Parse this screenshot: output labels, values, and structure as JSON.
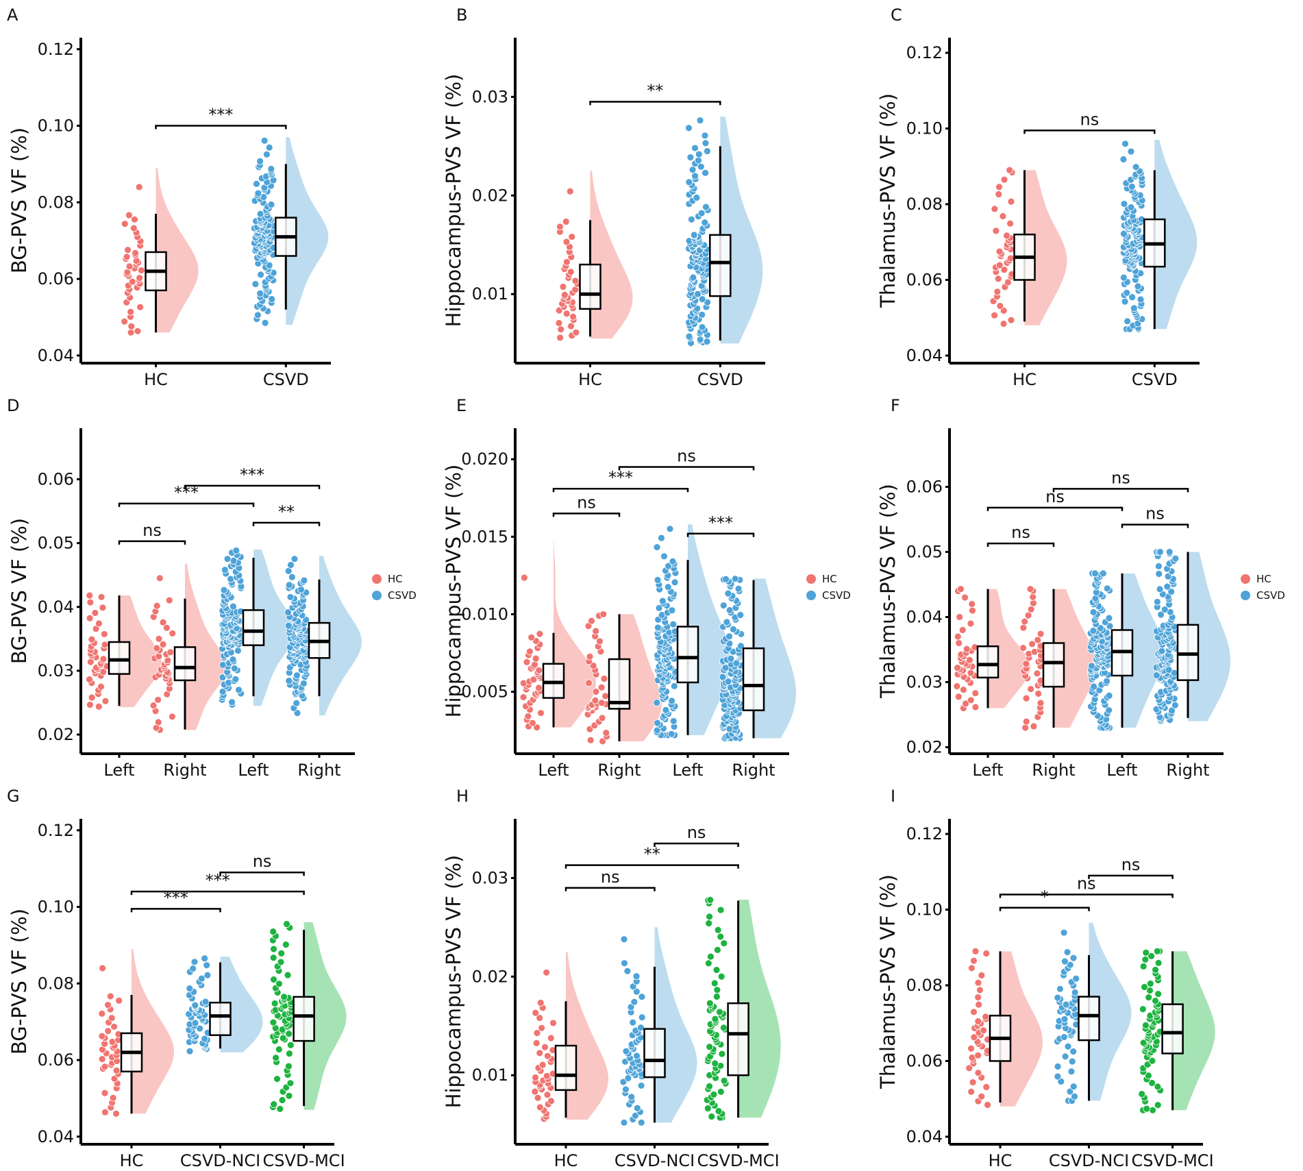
{
  "colors": {
    "HC": {
      "point": "#F07470",
      "fill": "#F9C6C3"
    },
    "CSVD": {
      "point": "#4EA3D8",
      "fill": "#BDDCF0"
    },
    "MCI": {
      "point": "#1DB33F",
      "fill": "#A5E3B4"
    }
  },
  "chart_data": [
    {
      "label": "A",
      "type": "raincloud",
      "ylabel": "BG-PVS VF (%)",
      "ylim": [
        0.038,
        0.123
      ],
      "yticks": [
        0.04,
        0.06,
        0.08,
        0.1,
        0.12
      ],
      "ytick_labels": [
        "0.04",
        "0.06",
        "0.08",
        "0.10",
        "0.12"
      ],
      "groups": [
        {
          "name": "HC",
          "color": "HC",
          "n_approx": 40,
          "whisker_low": 0.046,
          "q1": 0.057,
          "median": 0.062,
          "q3": 0.067,
          "whisker_high": 0.077,
          "point_range": [
            0.046,
            0.089
          ]
        },
        {
          "name": "CSVD",
          "color": "CSVD",
          "n_approx": 130,
          "whisker_low": 0.052,
          "q1": 0.066,
          "median": 0.071,
          "q3": 0.076,
          "whisker_high": 0.09,
          "point_range": [
            0.048,
            0.097
          ]
        }
      ],
      "comparisons": [
        {
          "from": 0,
          "to": 1,
          "y": 0.1,
          "label": "***"
        }
      ]
    },
    {
      "label": "B",
      "type": "raincloud",
      "ylabel": "Hippocampus-PVS VF (%)",
      "ylim": [
        0.003,
        0.036
      ],
      "yticks": [
        0.01,
        0.02,
        0.03
      ],
      "ytick_labels": [
        "0.01",
        "0.02",
        "0.03"
      ],
      "groups": [
        {
          "name": "HC",
          "color": "HC",
          "n_approx": 40,
          "whisker_low": 0.0057,
          "q1": 0.0085,
          "median": 0.01,
          "q3": 0.013,
          "whisker_high": 0.0175,
          "point_range": [
            0.0055,
            0.0225
          ]
        },
        {
          "name": "CSVD",
          "color": "CSVD",
          "n_approx": 130,
          "whisker_low": 0.0053,
          "q1": 0.0098,
          "median": 0.0132,
          "q3": 0.016,
          "whisker_high": 0.025,
          "point_range": [
            0.005,
            0.028
          ]
        }
      ],
      "comparisons": [
        {
          "from": 0,
          "to": 1,
          "y": 0.0295,
          "label": "**"
        }
      ]
    },
    {
      "label": "C",
      "type": "raincloud",
      "ylabel": "Thalamus-PVS VF (%)",
      "ylim": [
        0.038,
        0.124
      ],
      "yticks": [
        0.04,
        0.06,
        0.08,
        0.1,
        0.12
      ],
      "ytick_labels": [
        "0.04",
        "0.06",
        "0.08",
        "0.10",
        "0.12"
      ],
      "groups": [
        {
          "name": "HC",
          "color": "HC",
          "n_approx": 40,
          "whisker_low": 0.049,
          "q1": 0.06,
          "median": 0.066,
          "q3": 0.072,
          "whisker_high": 0.089,
          "point_range": [
            0.048,
            0.089
          ]
        },
        {
          "name": "CSVD",
          "color": "CSVD",
          "n_approx": 130,
          "whisker_low": 0.047,
          "q1": 0.0635,
          "median": 0.0695,
          "q3": 0.076,
          "whisker_high": 0.089,
          "point_range": [
            0.047,
            0.097
          ]
        }
      ],
      "comparisons": [
        {
          "from": 0,
          "to": 1,
          "y": 0.0995,
          "label": "ns"
        }
      ]
    },
    {
      "label": "D",
      "type": "raincloud",
      "ylabel": "BG-PVS VF (%)",
      "ylim": [
        0.017,
        0.068
      ],
      "yticks": [
        0.02,
        0.03,
        0.04,
        0.05,
        0.06
      ],
      "ytick_labels": [
        "0.02",
        "0.03",
        "0.04",
        "0.05",
        "0.06"
      ],
      "legend": [
        "HC",
        "CSVD"
      ],
      "groups": [
        {
          "name": "Left",
          "color": "HC",
          "n_approx": 40,
          "whisker_low": 0.0245,
          "q1": 0.0295,
          "median": 0.0317,
          "q3": 0.0345,
          "whisker_high": 0.0418,
          "point_range": [
            0.0243,
            0.0418
          ]
        },
        {
          "name": "Right",
          "color": "HC",
          "n_approx": 40,
          "whisker_low": 0.0208,
          "q1": 0.0285,
          "median": 0.0305,
          "q3": 0.0337,
          "whisker_high": 0.0413,
          "point_range": [
            0.0207,
            0.0468
          ]
        },
        {
          "name": "Left",
          "color": "CSVD",
          "n_approx": 130,
          "whisker_low": 0.026,
          "q1": 0.034,
          "median": 0.0362,
          "q3": 0.0395,
          "whisker_high": 0.0477,
          "point_range": [
            0.0245,
            0.049
          ]
        },
        {
          "name": "Right",
          "color": "CSVD",
          "n_approx": 130,
          "whisker_low": 0.026,
          "q1": 0.032,
          "median": 0.0346,
          "q3": 0.0375,
          "whisker_high": 0.0443,
          "point_range": [
            0.023,
            0.048
          ]
        }
      ],
      "comparisons": [
        {
          "from": 0,
          "to": 1,
          "y": 0.0503,
          "label": "ns"
        },
        {
          "from": 0,
          "to": 2,
          "y": 0.0562,
          "label": "***"
        },
        {
          "from": 2,
          "to": 3,
          "y": 0.0532,
          "label": "**"
        },
        {
          "from": 1,
          "to": 3,
          "y": 0.059,
          "label": "***"
        }
      ]
    },
    {
      "label": "E",
      "type": "raincloud",
      "ylabel": "Hippocampus-PVS VF (%)",
      "ylim": [
        0.001,
        0.022
      ],
      "yticks": [
        0.005,
        0.01,
        0.015,
        0.02
      ],
      "ytick_labels": [
        "0.005",
        "0.010",
        "0.015",
        "0.020"
      ],
      "legend": [
        "HC",
        "CSVD"
      ],
      "groups": [
        {
          "name": "Left",
          "color": "HC",
          "n_approx": 40,
          "whisker_low": 0.0027,
          "q1": 0.0046,
          "median": 0.0056,
          "q3": 0.0068,
          "whisker_high": 0.0088,
          "point_range": [
            0.0027,
            0.0149
          ]
        },
        {
          "name": "Right",
          "color": "HC",
          "n_approx": 40,
          "whisker_low": 0.0018,
          "q1": 0.0039,
          "median": 0.0043,
          "q3": 0.0071,
          "whisker_high": 0.01,
          "point_range": [
            0.0018,
            0.01
          ]
        },
        {
          "name": "Left",
          "color": "CSVD",
          "n_approx": 130,
          "whisker_low": 0.0022,
          "q1": 0.0056,
          "median": 0.0072,
          "q3": 0.0092,
          "whisker_high": 0.0135,
          "point_range": [
            0.0022,
            0.0158
          ]
        },
        {
          "name": "Right",
          "color": "CSVD",
          "n_approx": 130,
          "whisker_low": 0.002,
          "q1": 0.0038,
          "median": 0.0054,
          "q3": 0.0078,
          "whisker_high": 0.0122,
          "point_range": [
            0.002,
            0.0123
          ]
        }
      ],
      "comparisons": [
        {
          "from": 0,
          "to": 1,
          "y": 0.0165,
          "label": "ns"
        },
        {
          "from": 0,
          "to": 2,
          "y": 0.0181,
          "label": "***"
        },
        {
          "from": 2,
          "to": 3,
          "y": 0.0152,
          "label": "***"
        },
        {
          "from": 1,
          "to": 3,
          "y": 0.0195,
          "label": "ns"
        }
      ]
    },
    {
      "label": "F",
      "type": "raincloud",
      "ylabel": "Thalamus-PVS VF (%)",
      "ylim": [
        0.019,
        0.069
      ],
      "yticks": [
        0.02,
        0.03,
        0.04,
        0.05,
        0.06
      ],
      "ytick_labels": [
        "0.02",
        "0.03",
        "0.04",
        "0.05",
        "0.06"
      ],
      "legend": [
        "HC",
        "CSVD"
      ],
      "groups": [
        {
          "name": "Left",
          "color": "HC",
          "n_approx": 40,
          "whisker_low": 0.026,
          "q1": 0.0307,
          "median": 0.0327,
          "q3": 0.0355,
          "whisker_high": 0.0443,
          "point_range": [
            0.026,
            0.0443
          ]
        },
        {
          "name": "Right",
          "color": "HC",
          "n_approx": 40,
          "whisker_low": 0.023,
          "q1": 0.0293,
          "median": 0.033,
          "q3": 0.036,
          "whisker_high": 0.0443,
          "point_range": [
            0.023,
            0.0443
          ]
        },
        {
          "name": "Left",
          "color": "CSVD",
          "n_approx": 130,
          "whisker_low": 0.023,
          "q1": 0.031,
          "median": 0.0347,
          "q3": 0.038,
          "whisker_high": 0.0467,
          "point_range": [
            0.023,
            0.0467
          ]
        },
        {
          "name": "Right",
          "color": "CSVD",
          "n_approx": 130,
          "whisker_low": 0.0245,
          "q1": 0.0303,
          "median": 0.0343,
          "q3": 0.0388,
          "whisker_high": 0.05,
          "point_range": [
            0.024,
            0.05
          ]
        }
      ],
      "comparisons": [
        {
          "from": 0,
          "to": 1,
          "y": 0.0513,
          "label": "ns"
        },
        {
          "from": 0,
          "to": 2,
          "y": 0.0568,
          "label": "ns"
        },
        {
          "from": 2,
          "to": 3,
          "y": 0.0542,
          "label": "ns"
        },
        {
          "from": 1,
          "to": 3,
          "y": 0.0597,
          "label": "ns"
        }
      ]
    },
    {
      "label": "G",
      "type": "raincloud",
      "ylabel": "BG-PVS VF (%)",
      "ylim": [
        0.038,
        0.123
      ],
      "yticks": [
        0.04,
        0.06,
        0.08,
        0.1,
        0.12
      ],
      "ytick_labels": [
        "0.04",
        "0.06",
        "0.08",
        "0.10",
        "0.12"
      ],
      "groups": [
        {
          "name": "HC",
          "color": "HC",
          "n_approx": 40,
          "whisker_low": 0.046,
          "q1": 0.057,
          "median": 0.062,
          "q3": 0.067,
          "whisker_high": 0.077,
          "point_range": [
            0.046,
            0.089
          ]
        },
        {
          "name": "CSVD-NCI",
          "color": "CSVD",
          "n_approx": 55,
          "whisker_low": 0.063,
          "q1": 0.0665,
          "median": 0.0715,
          "q3": 0.075,
          "whisker_high": 0.0855,
          "point_range": [
            0.062,
            0.087
          ]
        },
        {
          "name": "CSVD-MCI",
          "color": "MCI",
          "n_approx": 70,
          "whisker_low": 0.048,
          "q1": 0.065,
          "median": 0.0715,
          "q3": 0.0765,
          "whisker_high": 0.094,
          "point_range": [
            0.047,
            0.096
          ]
        }
      ],
      "comparisons": [
        {
          "from": 0,
          "to": 1,
          "y": 0.0995,
          "label": "***"
        },
        {
          "from": 0,
          "to": 2,
          "y": 0.104,
          "label": "***"
        },
        {
          "from": 1,
          "to": 2,
          "y": 0.109,
          "label": "ns"
        }
      ]
    },
    {
      "label": "H",
      "type": "raincloud",
      "ylabel": "Hippocampus-PVS VF (%)",
      "ylim": [
        0.003,
        0.036
      ],
      "yticks": [
        0.01,
        0.02,
        0.03
      ],
      "ytick_labels": [
        "0.01",
        "0.02",
        "0.03"
      ],
      "groups": [
        {
          "name": "HC",
          "color": "HC",
          "n_approx": 40,
          "whisker_low": 0.0057,
          "q1": 0.0085,
          "median": 0.01,
          "q3": 0.013,
          "whisker_high": 0.0175,
          "point_range": [
            0.0055,
            0.0225
          ]
        },
        {
          "name": "CSVD-NCI",
          "color": "CSVD",
          "n_approx": 55,
          "whisker_low": 0.0052,
          "q1": 0.0098,
          "median": 0.0115,
          "q3": 0.0147,
          "whisker_high": 0.021,
          "point_range": [
            0.0052,
            0.025
          ]
        },
        {
          "name": "CSVD-MCI",
          "color": "MCI",
          "n_approx": 70,
          "whisker_low": 0.0057,
          "q1": 0.01,
          "median": 0.0142,
          "q3": 0.0173,
          "whisker_high": 0.0277,
          "point_range": [
            0.0057,
            0.0278
          ]
        }
      ],
      "comparisons": [
        {
          "from": 0,
          "to": 1,
          "y": 0.029,
          "label": "ns"
        },
        {
          "from": 0,
          "to": 2,
          "y": 0.0313,
          "label": "**"
        },
        {
          "from": 1,
          "to": 2,
          "y": 0.0335,
          "label": "ns"
        }
      ]
    },
    {
      "label": "I",
      "type": "raincloud",
      "ylabel": "Thalamus-PVS VF (%)",
      "ylim": [
        0.038,
        0.124
      ],
      "yticks": [
        0.04,
        0.06,
        0.08,
        0.1,
        0.12
      ],
      "ytick_labels": [
        "0.04",
        "0.06",
        "0.08",
        "0.10",
        "0.12"
      ],
      "groups": [
        {
          "name": "HC",
          "color": "HC",
          "n_approx": 40,
          "whisker_low": 0.049,
          "q1": 0.06,
          "median": 0.066,
          "q3": 0.072,
          "whisker_high": 0.089,
          "point_range": [
            0.048,
            0.089
          ]
        },
        {
          "name": "CSVD-NCI",
          "color": "CSVD",
          "n_approx": 55,
          "whisker_low": 0.0495,
          "q1": 0.0655,
          "median": 0.072,
          "q3": 0.077,
          "whisker_high": 0.088,
          "point_range": [
            0.0495,
            0.0965
          ]
        },
        {
          "name": "CSVD-MCI",
          "color": "MCI",
          "n_approx": 70,
          "whisker_low": 0.047,
          "q1": 0.062,
          "median": 0.0675,
          "q3": 0.075,
          "whisker_high": 0.089,
          "point_range": [
            0.047,
            0.089
          ]
        }
      ],
      "comparisons": [
        {
          "from": 0,
          "to": 1,
          "y": 0.1005,
          "label": "*"
        },
        {
          "from": 0,
          "to": 2,
          "y": 0.104,
          "label": "ns"
        },
        {
          "from": 1,
          "to": 2,
          "y": 0.109,
          "label": "ns"
        }
      ]
    }
  ]
}
